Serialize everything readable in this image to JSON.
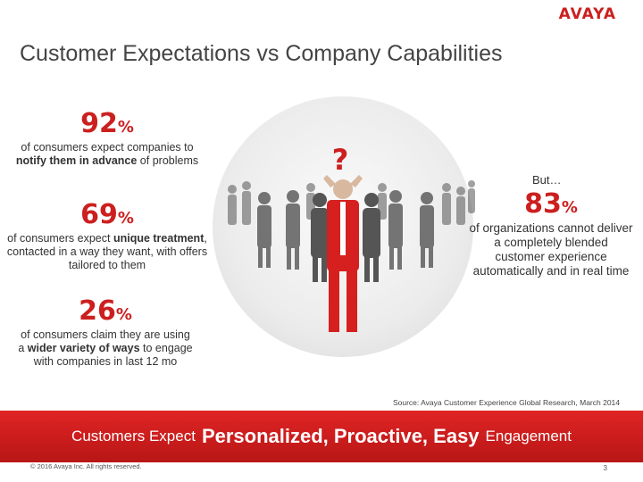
{
  "header": {
    "logo_text": "AVAYA",
    "title": "Customer Expectations vs Company Capabilities"
  },
  "stats": [
    {
      "num": "92",
      "pct": "%",
      "pre": "of consumers expect companies to ",
      "bold": "notify them in advance",
      "post": " of problems"
    },
    {
      "num": "69",
      "pct": "%",
      "pre": "of consumers expect ",
      "bold": "unique treatment",
      "post": ", contacted in a way they want, with offers tailored to them"
    },
    {
      "num": "26",
      "pct": "%",
      "pre": "of consumers claim they are using a ",
      "bold": "wider variety of ways",
      "post": " to engage with companies in last 12 mo"
    }
  ],
  "right_stat": {
    "but": "But…",
    "num": "83",
    "pct": "%",
    "desc": "of organizations cannot deliver a completely blended customer experience automatically and in real time"
  },
  "illustration": {
    "question_mark": "?",
    "icon": "crowd-with-confused-person-icon"
  },
  "source": "Source: Avaya Customer Experience Global Research, March 2014",
  "banner": {
    "pre": "Customers Expect",
    "emphasis": "Personalized, Proactive, Easy",
    "post": "Engagement"
  },
  "footer": {
    "copyright": "© 2016 Avaya Inc. All rights reserved.",
    "page": "3"
  },
  "colors": {
    "accent": "#cc1f1f",
    "banner": "#d41f1f"
  }
}
